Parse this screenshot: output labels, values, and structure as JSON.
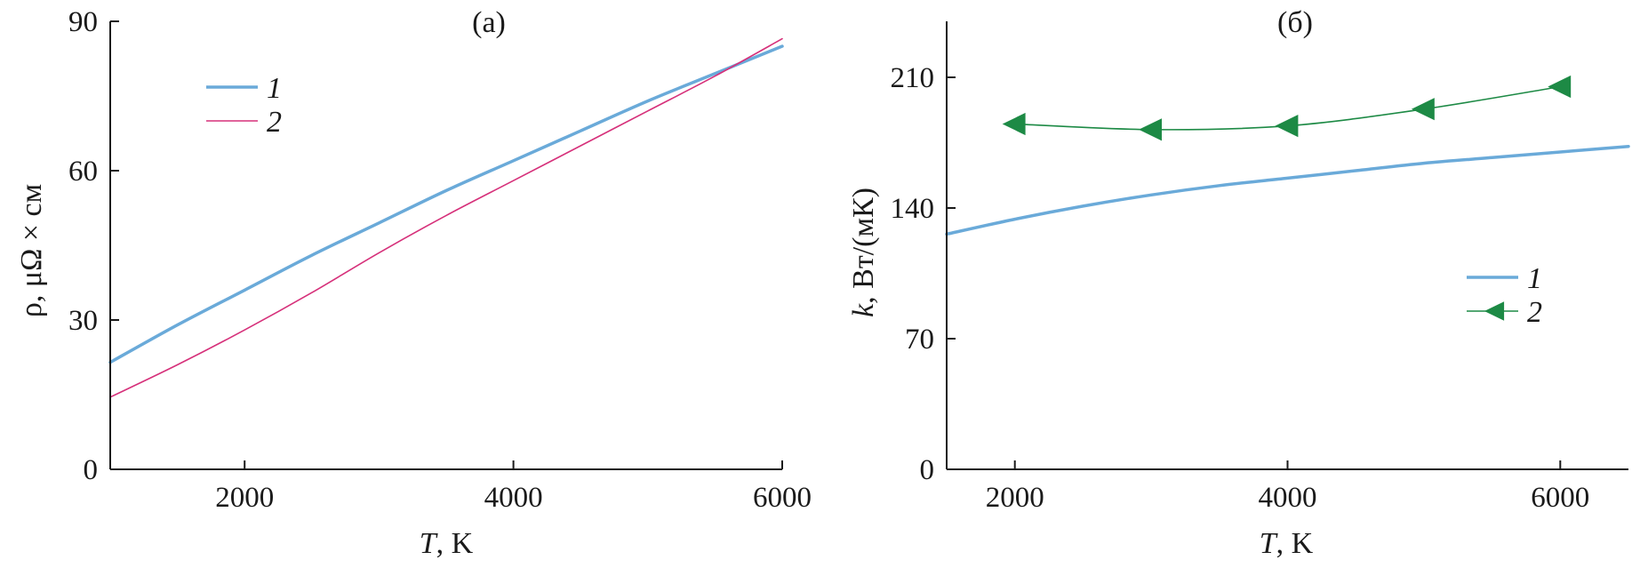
{
  "chart_data": [
    {
      "type": "line",
      "panel": "(a)",
      "xlabel_italic": "T",
      "xlabel_rest": ", K",
      "ylabel": "ρ, μΩ × см",
      "xlim": [
        1000,
        6000
      ],
      "ylim": [
        0,
        90
      ],
      "xticks": [
        2000,
        4000,
        6000
      ],
      "yticks": [
        0,
        30,
        60,
        90
      ],
      "legend_position": "top-left",
      "series": [
        {
          "name": "1",
          "color": "#6aaad9",
          "marker": "none",
          "x": [
            1000,
            1500,
            2000,
            2500,
            3000,
            3500,
            4000,
            4500,
            5000,
            5500,
            6000
          ],
          "y": [
            21.5,
            29.0,
            36.0,
            43.0,
            49.5,
            56.0,
            62.0,
            68.0,
            74.0,
            79.5,
            85.0
          ]
        },
        {
          "name": "2",
          "color": "#d6307a",
          "marker": "none",
          "x": [
            1000,
            1500,
            2000,
            2500,
            3000,
            3500,
            4000,
            4500,
            5000,
            5500,
            6000
          ],
          "y": [
            14.5,
            21.0,
            28.0,
            35.5,
            43.5,
            51.0,
            58.0,
            65.0,
            72.0,
            79.0,
            86.5
          ]
        }
      ]
    },
    {
      "type": "line",
      "panel": "(б)",
      "xlabel_italic": "T",
      "xlabel_rest": ", K",
      "ylabel_italic": "k",
      "ylabel_rest": ", Вт/(мК)",
      "xlim": [
        1500,
        6500
      ],
      "ylim": [
        0,
        240
      ],
      "xticks": [
        2000,
        4000,
        6000
      ],
      "yticks": [
        0,
        70,
        140,
        210
      ],
      "legend_position": "center-right",
      "series": [
        {
          "name": "1",
          "color": "#6aaad9",
          "marker": "none",
          "x": [
            1500,
            2000,
            2500,
            3000,
            3500,
            4000,
            4500,
            5000,
            5500,
            6000,
            6500
          ],
          "y": [
            126,
            134,
            141,
            147,
            152,
            156,
            160,
            164,
            167,
            170,
            173
          ]
        },
        {
          "name": "2",
          "color": "#1d8a45",
          "marker": "triangle-left",
          "x": [
            2000,
            3000,
            4000,
            5000,
            6000
          ],
          "y": [
            185,
            182,
            184,
            193,
            205
          ]
        }
      ]
    }
  ]
}
